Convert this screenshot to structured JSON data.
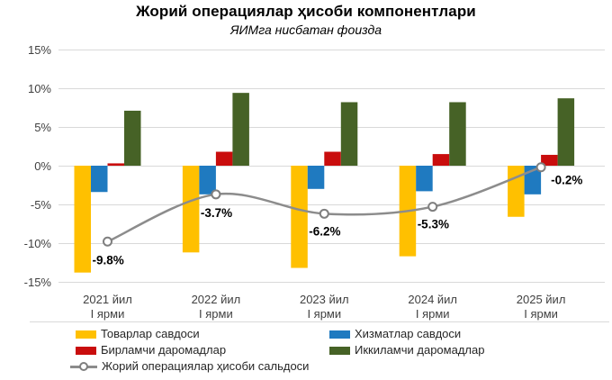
{
  "chart_data": {
    "type": "bar",
    "subtype": "grouped bars with smoothed line overlay",
    "title": "Жорий операциялар ҳисоби компонентлари",
    "subtitle": "ЯИМга нисбатан фоизда",
    "categories": [
      [
        "2021 йил",
        "I ярми"
      ],
      [
        "2022 йил",
        "I ярми"
      ],
      [
        "2023 йил",
        "I ярми"
      ],
      [
        "2024 йил",
        "I ярми"
      ],
      [
        "2025 йил",
        "I ярми"
      ]
    ],
    "y_axis": {
      "unit": "%",
      "min": -15,
      "max": 15,
      "tick_labels": [
        "15%",
        "10%",
        "5%",
        "0%",
        "-5%",
        "-10%",
        "-15%"
      ],
      "tick_values": [
        15,
        10,
        5,
        0,
        -5,
        -10,
        -15
      ]
    },
    "grid": true,
    "legend_position": "bottom",
    "series": [
      {
        "name": "Товарлар савдоси",
        "type": "bar",
        "color": "#FFC000",
        "values": [
          -13.8,
          -11.2,
          -13.2,
          -11.7,
          -6.6
        ]
      },
      {
        "name": "Хизматлар савдоси",
        "type": "bar",
        "color": "#1F7AC0",
        "values": [
          -3.4,
          -3.7,
          -3.0,
          -3.3,
          -3.7
        ]
      },
      {
        "name": "Бирламчи даромадлар",
        "type": "bar",
        "color": "#C90D0D",
        "values": [
          0.3,
          1.8,
          1.8,
          1.5,
          1.4
        ]
      },
      {
        "name": "Иккиламчи даромадлар",
        "type": "bar",
        "color": "#466226",
        "values": [
          7.1,
          9.4,
          8.2,
          8.2,
          8.7
        ]
      },
      {
        "name": "Жорий операциялар ҳисоби сальдоси",
        "type": "line",
        "color": "#8C8C8C",
        "marker": {
          "fill": "#FFFFFF",
          "stroke": "#7F7F7F"
        },
        "values": [
          -9.8,
          -3.7,
          -6.2,
          -5.3,
          -0.2
        ],
        "data_labels": [
          "-9.8%",
          "-3.7%",
          "-6.2%",
          "-5.3%",
          "-0.2%"
        ]
      }
    ],
    "colors": {
      "grid": "#D9D9D9",
      "axis_text": "#404040",
      "data_label": "#000000",
      "background": "#FFFFFF"
    }
  }
}
